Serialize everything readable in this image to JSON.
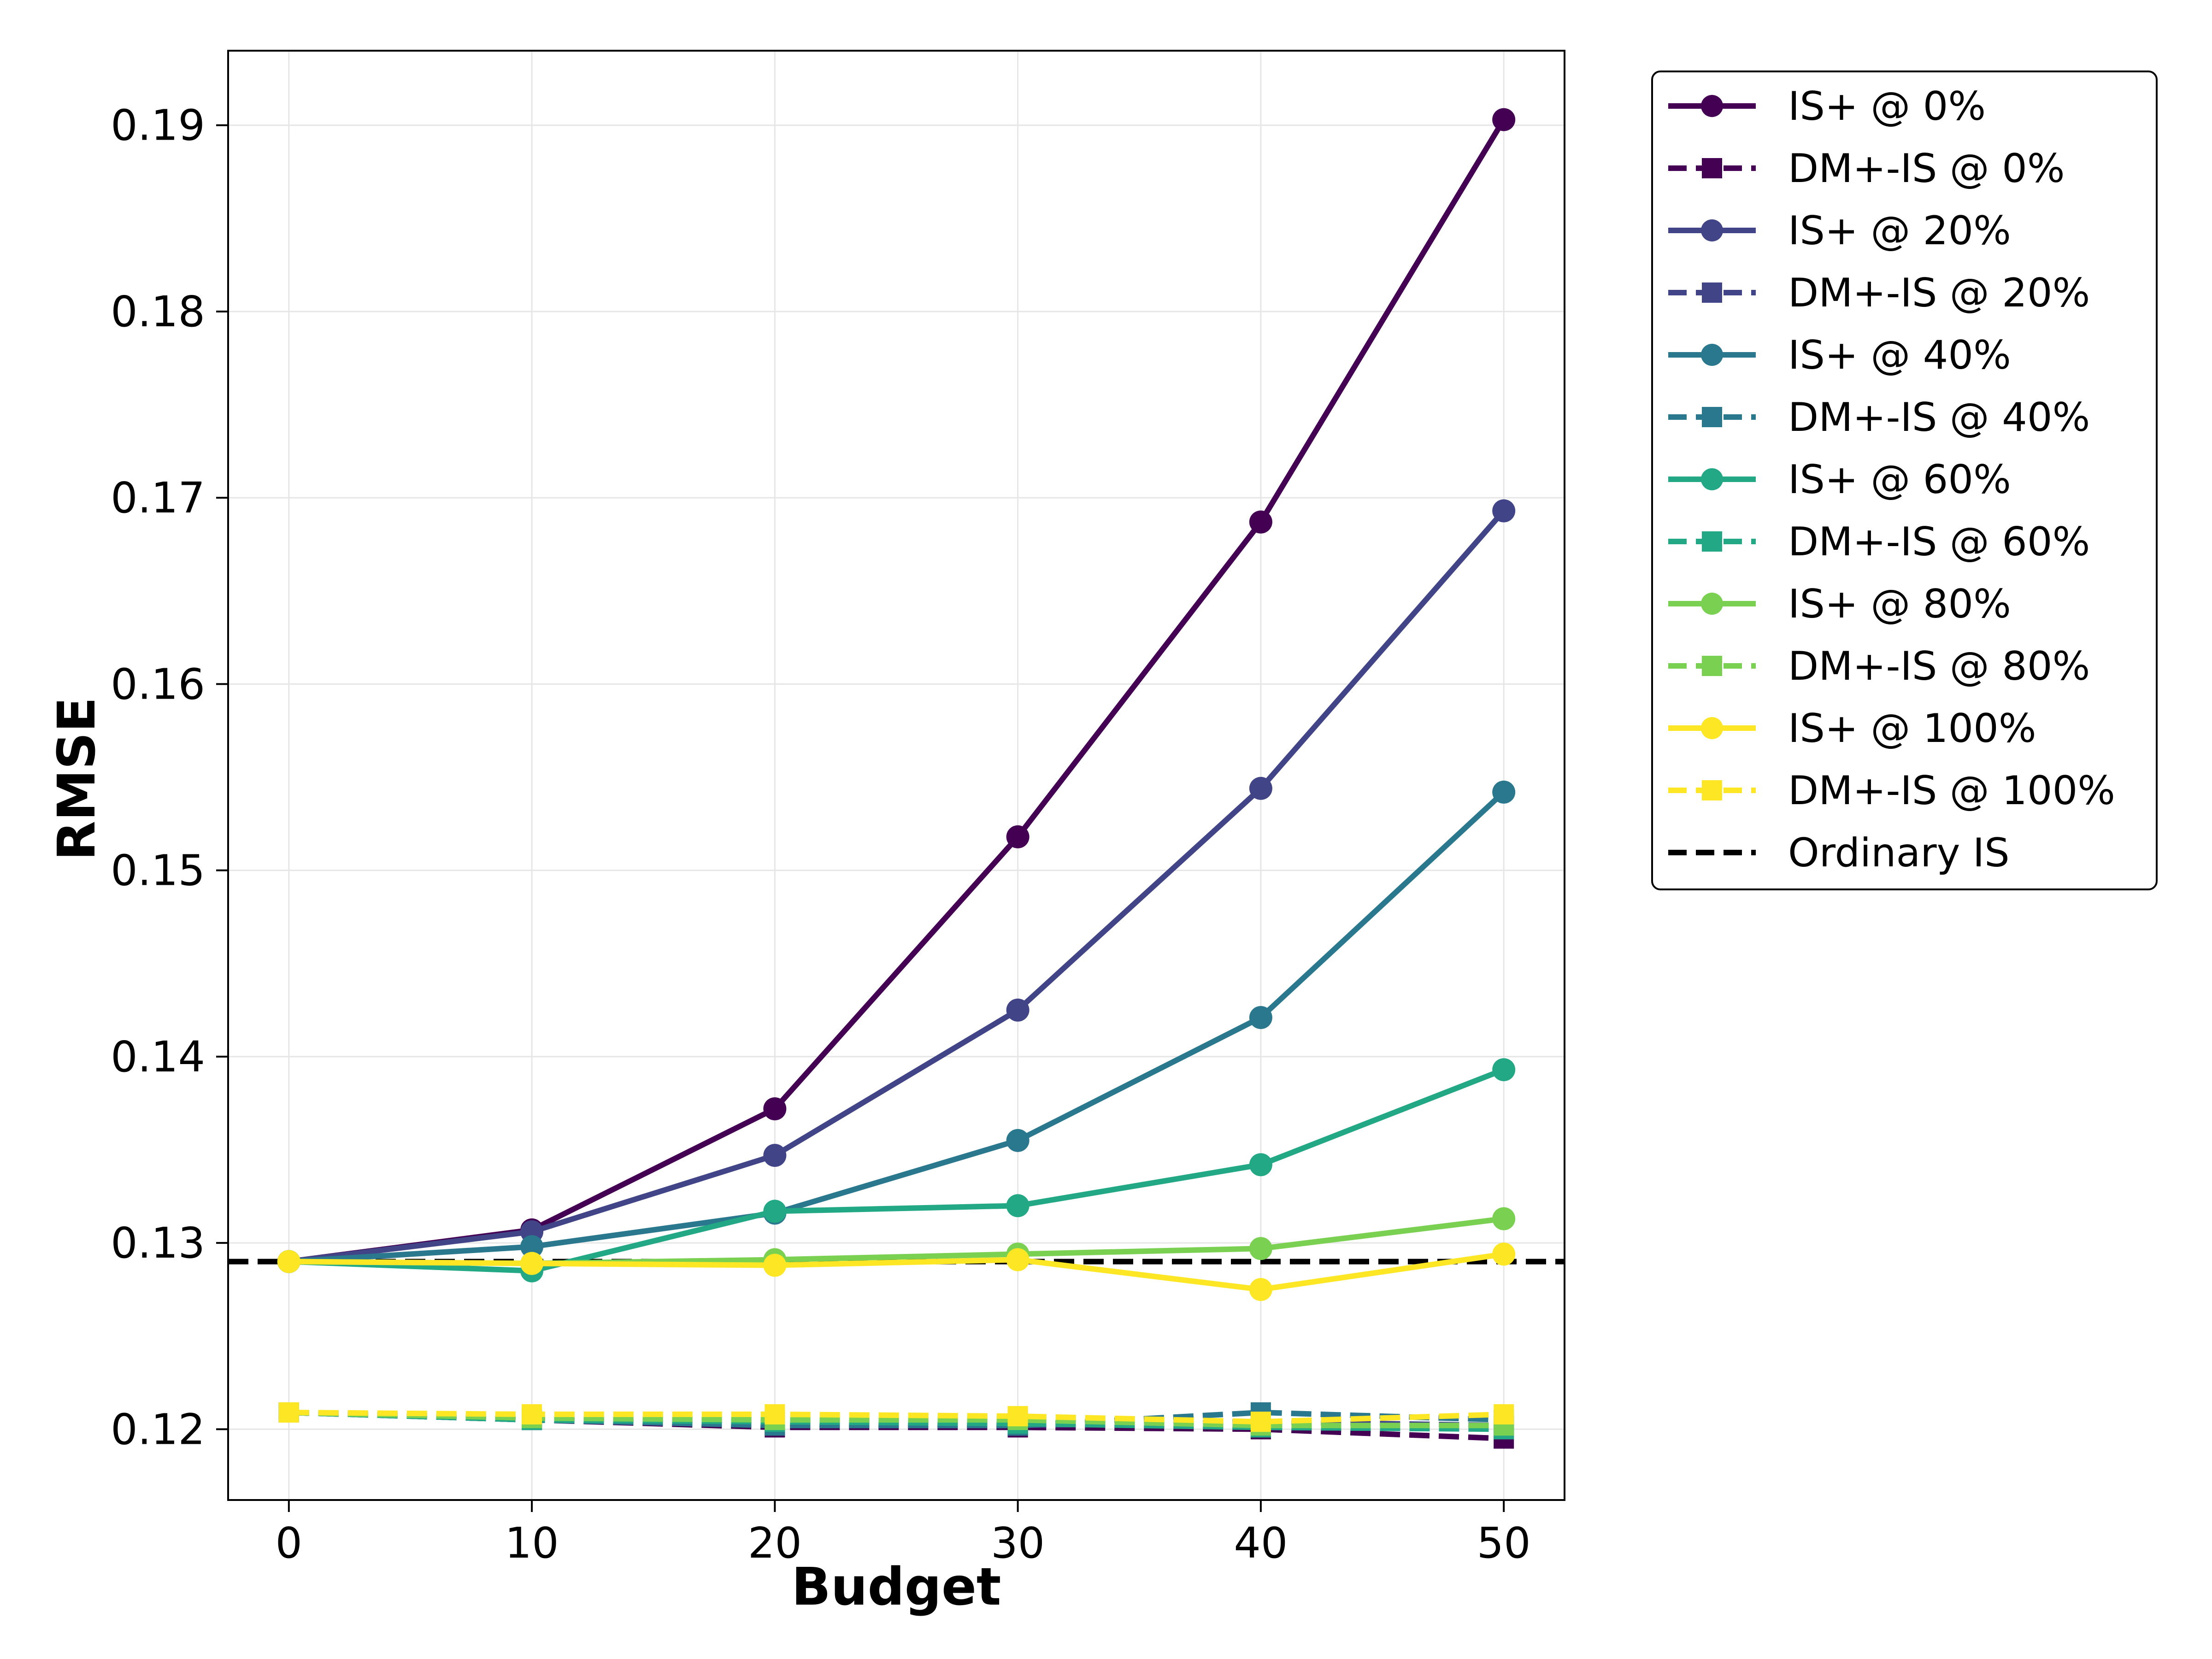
{
  "chart_data": {
    "type": "line",
    "xlabel": "Budget",
    "ylabel": "RMSE",
    "x": [
      0,
      10,
      20,
      30,
      40,
      50
    ],
    "xlim": [
      -2.5,
      52.5
    ],
    "ylim": [
      0.1162,
      0.194
    ],
    "xticks": [
      0,
      10,
      20,
      30,
      40,
      50
    ],
    "yticks": [
      0.12,
      0.13,
      0.14,
      0.15,
      0.16,
      0.17,
      0.18,
      0.19
    ],
    "ytick_labels": [
      "0.12",
      "0.13",
      "0.14",
      "0.15",
      "0.16",
      "0.17",
      "0.18",
      "0.19"
    ],
    "grid": true,
    "legend_position": "outside-right-top",
    "series": [
      {
        "name": "IS+ @ 0%",
        "color": "#440154",
        "style": "solid",
        "marker": "circle",
        "values": [
          0.129,
          0.1307,
          0.1372,
          0.1518,
          0.1687,
          0.1903
        ]
      },
      {
        "name": "DM+-IS @ 0%",
        "color": "#440154",
        "style": "dashed",
        "marker": "square",
        "values": [
          0.1209,
          0.1205,
          0.1201,
          0.1201,
          0.12,
          0.1195
        ]
      },
      {
        "name": "IS+ @ 20%",
        "color": "#414487",
        "style": "solid",
        "marker": "circle",
        "values": [
          0.129,
          0.1306,
          0.1347,
          0.1425,
          0.1544,
          0.1693
        ]
      },
      {
        "name": "DM+-IS @ 20%",
        "color": "#414487",
        "style": "dashed",
        "marker": "square",
        "values": [
          0.1209,
          0.1205,
          0.1202,
          0.1202,
          0.1204,
          0.1202
        ]
      },
      {
        "name": "IS+ @ 40%",
        "color": "#2a788e",
        "style": "solid",
        "marker": "circle",
        "values": [
          0.129,
          0.1298,
          0.1316,
          0.1355,
          0.1421,
          0.1542
        ]
      },
      {
        "name": "DM+-IS @ 40%",
        "color": "#2a788e",
        "style": "dashed",
        "marker": "square",
        "values": [
          0.1209,
          0.1205,
          0.1202,
          0.1202,
          0.1209,
          0.1205
        ]
      },
      {
        "name": "IS+ @ 60%",
        "color": "#22a884",
        "style": "solid",
        "marker": "circle",
        "values": [
          0.129,
          0.1285,
          0.1317,
          0.132,
          0.1342,
          0.1393
        ]
      },
      {
        "name": "DM+-IS @ 60%",
        "color": "#22a884",
        "style": "dashed",
        "marker": "square",
        "values": [
          0.1209,
          0.1205,
          0.1204,
          0.1203,
          0.1201,
          0.12
        ]
      },
      {
        "name": "IS+ @ 80%",
        "color": "#7ad151",
        "style": "solid",
        "marker": "circle",
        "values": [
          0.129,
          0.1289,
          0.1291,
          0.1294,
          0.1297,
          0.1313
        ]
      },
      {
        "name": "DM+-IS @ 80%",
        "color": "#7ad151",
        "style": "dashed",
        "marker": "square",
        "values": [
          0.1209,
          0.1206,
          0.1205,
          0.1205,
          0.1202,
          0.1202
        ]
      },
      {
        "name": "IS+ @ 100%",
        "color": "#fde725",
        "style": "solid",
        "marker": "circle",
        "values": [
          0.129,
          0.1289,
          0.1288,
          0.1291,
          0.1275,
          0.1294
        ]
      },
      {
        "name": "DM+-IS @ 100%",
        "color": "#fde725",
        "style": "dashed",
        "marker": "square",
        "values": [
          0.1209,
          0.1208,
          0.1208,
          0.1207,
          0.1204,
          0.1208
        ]
      }
    ],
    "reference_line": {
      "name": "Ordinary IS",
      "value": 0.129,
      "color": "#000000",
      "style": "dashed"
    }
  }
}
